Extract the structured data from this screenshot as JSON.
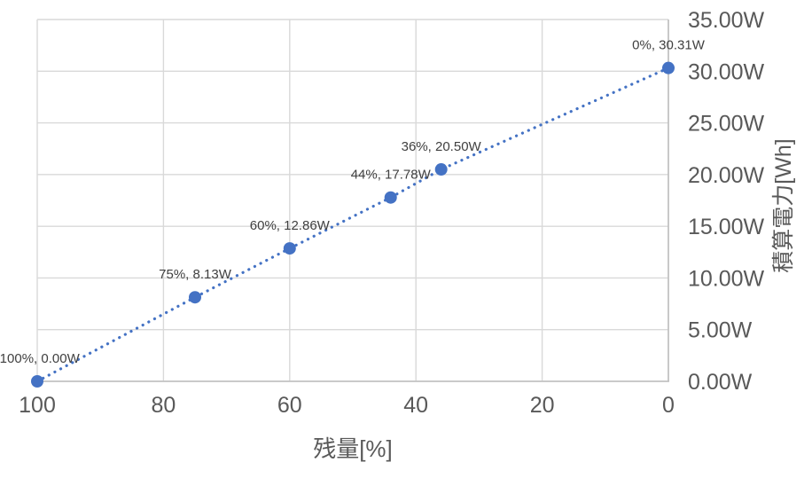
{
  "chart_data": {
    "type": "scatter",
    "title": "",
    "xlabel": "残量[%]",
    "ylabel": "積算電力[Wh]",
    "grid": true,
    "legend": "none",
    "x_axis": {
      "min": 0,
      "max": 100,
      "reversed": true,
      "ticks": [
        100,
        80,
        60,
        40,
        20,
        0
      ],
      "tick_labels": [
        "100",
        "80",
        "60",
        "40",
        "20",
        "0"
      ]
    },
    "y_axis": {
      "min": 0,
      "max": 35,
      "step": 5,
      "position": "right",
      "ticks": [
        0,
        5,
        10,
        15,
        20,
        25,
        30,
        35
      ],
      "tick_labels": [
        "0.00W",
        "5.00W",
        "10.00W",
        "15.00W",
        "20.00W",
        "25.00W",
        "30.00W",
        "35.00W"
      ]
    },
    "series": [
      {
        "line_style": "dotted",
        "marker": "circle",
        "color": "#4472C4",
        "points": [
          {
            "x": 100,
            "y": 0.0,
            "label": "100%, 0.00W"
          },
          {
            "x": 75,
            "y": 8.13,
            "label": "75%, 8.13W"
          },
          {
            "x": 60,
            "y": 12.86,
            "label": "60%, 12.86W"
          },
          {
            "x": 44,
            "y": 17.78,
            "label": "44%, 17.78W"
          },
          {
            "x": 36,
            "y": 20.5,
            "label": "36%, 20.50W"
          },
          {
            "x": 0,
            "y": 30.31,
            "label": "0%, 30.31W"
          }
        ]
      }
    ],
    "colors": {
      "series": "#4472C4",
      "gridline": "#D9D9D9",
      "axis_line": "#BFBFBF",
      "tick_text": "#595959",
      "data_label_text": "#404040"
    }
  }
}
